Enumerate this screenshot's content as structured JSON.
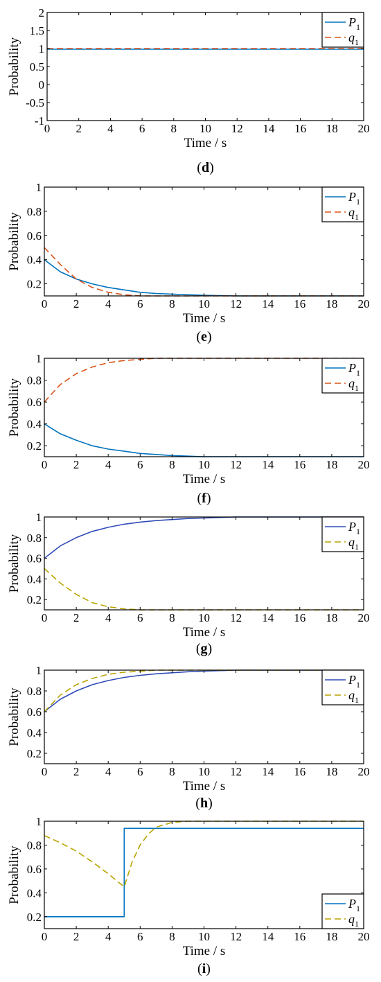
{
  "chart_data": [
    {
      "id": "d",
      "type": "line",
      "caption": "d",
      "xlabel": "Time / s",
      "ylabel": "Probability",
      "xlim": [
        0,
        20
      ],
      "ylim": [
        -1,
        2
      ],
      "xticks": [
        0,
        2,
        4,
        6,
        8,
        10,
        12,
        14,
        16,
        18,
        20
      ],
      "yticks": [
        -1,
        -0.5,
        0,
        0.5,
        1,
        1.5,
        2
      ],
      "ytick_labels": [
        "-1",
        "-0.5",
        "0",
        "0.5",
        "1",
        "1.5",
        "2"
      ],
      "grid": false,
      "legend": "top-right",
      "series": [
        {
          "name": "P",
          "subscript": "1",
          "color": "#0072BD",
          "dash": "solid",
          "x": [
            0,
            20
          ],
          "y": [
            0.98,
            0.98
          ]
        },
        {
          "name": "q",
          "subscript": "1",
          "color": "#D95319",
          "dash": "dashed",
          "x": [
            0,
            20
          ],
          "y": [
            1.0,
            1.0
          ]
        }
      ]
    },
    {
      "id": "e",
      "type": "line",
      "caption": "e",
      "xlabel": "Time / s",
      "ylabel": "Probability",
      "xlim": [
        0,
        20
      ],
      "ylim": [
        0.1,
        1
      ],
      "xticks": [
        0,
        2,
        4,
        6,
        8,
        10,
        12,
        14,
        16,
        18,
        20
      ],
      "yticks": [
        0.2,
        0.4,
        0.6,
        0.8,
        1
      ],
      "ytick_labels": [
        "0.2",
        "0.4",
        "0.6",
        "0.8",
        "1"
      ],
      "grid": false,
      "legend": "top-right",
      "series": [
        {
          "name": "P",
          "subscript": "1",
          "color": "#0072BD",
          "dash": "solid",
          "x": [
            0,
            1,
            2,
            3,
            4,
            5,
            6,
            7,
            8,
            9,
            10,
            12,
            14,
            16,
            18,
            20
          ],
          "y": [
            0.4,
            0.3,
            0.24,
            0.2,
            0.17,
            0.15,
            0.13,
            0.12,
            0.115,
            0.11,
            0.105,
            0.1,
            0.1,
            0.1,
            0.1,
            0.1
          ]
        },
        {
          "name": "q",
          "subscript": "1",
          "color": "#D95319",
          "dash": "dashed",
          "x": [
            0,
            1,
            2,
            3,
            4,
            5,
            6,
            7,
            8,
            9,
            10,
            12,
            14,
            16,
            18,
            20
          ],
          "y": [
            0.5,
            0.36,
            0.24,
            0.17,
            0.13,
            0.11,
            0.1,
            0.1,
            0.1,
            0.1,
            0.1,
            0.1,
            0.1,
            0.1,
            0.1,
            0.1
          ]
        }
      ]
    },
    {
      "id": "f",
      "type": "line",
      "caption": "f",
      "xlabel": "Time / s",
      "ylabel": "Probability",
      "xlim": [
        0,
        20
      ],
      "ylim": [
        0.1,
        1
      ],
      "xticks": [
        0,
        2,
        4,
        6,
        8,
        10,
        12,
        14,
        16,
        18,
        20
      ],
      "yticks": [
        0.2,
        0.4,
        0.6,
        0.8,
        1
      ],
      "ytick_labels": [
        "0.2",
        "0.4",
        "0.6",
        "0.8",
        "1"
      ],
      "grid": false,
      "legend": "top-right",
      "series": [
        {
          "name": "P",
          "subscript": "1",
          "color": "#0072BD",
          "dash": "solid",
          "x": [
            0,
            1,
            2,
            3,
            4,
            5,
            6,
            7,
            8,
            9,
            10,
            12,
            14,
            16,
            18,
            20
          ],
          "y": [
            0.4,
            0.31,
            0.25,
            0.2,
            0.17,
            0.15,
            0.13,
            0.12,
            0.11,
            0.105,
            0.1,
            0.1,
            0.1,
            0.1,
            0.1,
            0.1
          ]
        },
        {
          "name": "q",
          "subscript": "1",
          "color": "#D95319",
          "dash": "dashed",
          "x": [
            0,
            1,
            2,
            3,
            4,
            5,
            6,
            7,
            8,
            10,
            12,
            14,
            16,
            18,
            20
          ],
          "y": [
            0.6,
            0.76,
            0.86,
            0.92,
            0.96,
            0.98,
            0.99,
            1.0,
            1.0,
            1.0,
            1.0,
            1.0,
            1.0,
            1.0,
            1.0
          ]
        }
      ]
    },
    {
      "id": "g",
      "type": "line",
      "caption": "g",
      "xlabel": "Time / s",
      "ylabel": "Probability",
      "xlim": [
        0,
        20
      ],
      "ylim": [
        0.1,
        1
      ],
      "xticks": [
        0,
        2,
        4,
        6,
        8,
        10,
        12,
        14,
        16,
        18,
        20
      ],
      "yticks": [
        0.2,
        0.4,
        0.6,
        0.8,
        1
      ],
      "ytick_labels": [
        "0.2",
        "0.4",
        "0.6",
        "0.8",
        "1"
      ],
      "grid": false,
      "legend": "top-right",
      "series": [
        {
          "name": "P",
          "subscript": "1",
          "color": "#2F4BB8",
          "dash": "solid",
          "x": [
            0,
            1,
            2,
            3,
            4,
            5,
            6,
            7,
            8,
            9,
            10,
            12,
            14,
            16,
            18,
            20
          ],
          "y": [
            0.6,
            0.72,
            0.8,
            0.86,
            0.9,
            0.93,
            0.95,
            0.965,
            0.975,
            0.985,
            0.99,
            1.0,
            1.0,
            1.0,
            1.0,
            1.0
          ]
        },
        {
          "name": "q",
          "subscript": "1",
          "color": "#B8A400",
          "dash": "dashed",
          "x": [
            0,
            1,
            2,
            3,
            4,
            5,
            6,
            7,
            8,
            10,
            12,
            14,
            16,
            18,
            20
          ],
          "y": [
            0.5,
            0.36,
            0.25,
            0.17,
            0.13,
            0.11,
            0.1,
            0.1,
            0.1,
            0.1,
            0.1,
            0.1,
            0.1,
            0.1,
            0.1
          ]
        }
      ]
    },
    {
      "id": "h",
      "type": "line",
      "caption": "h",
      "xlabel": "Time / s",
      "ylabel": "Probability",
      "xlim": [
        0,
        20
      ],
      "ylim": [
        0.1,
        1
      ],
      "xticks": [
        0,
        2,
        4,
        6,
        8,
        10,
        12,
        14,
        16,
        18,
        20
      ],
      "yticks": [
        0.2,
        0.4,
        0.6,
        0.8,
        1
      ],
      "ytick_labels": [
        "0.2",
        "0.4",
        "0.6",
        "0.8",
        "1"
      ],
      "grid": false,
      "legend": "top-right",
      "series": [
        {
          "name": "P",
          "subscript": "1",
          "color": "#2F4BB8",
          "dash": "solid",
          "x": [
            0,
            1,
            2,
            3,
            4,
            5,
            6,
            7,
            8,
            9,
            10,
            12,
            14,
            16,
            18,
            20
          ],
          "y": [
            0.6,
            0.72,
            0.8,
            0.86,
            0.9,
            0.93,
            0.95,
            0.965,
            0.975,
            0.985,
            0.99,
            1.0,
            1.0,
            1.0,
            1.0,
            1.0
          ]
        },
        {
          "name": "q",
          "subscript": "1",
          "color": "#B8A400",
          "dash": "dashed",
          "x": [
            0,
            1,
            2,
            3,
            4,
            5,
            6,
            7,
            8,
            10,
            12,
            14,
            16,
            18,
            20
          ],
          "y": [
            0.6,
            0.76,
            0.86,
            0.92,
            0.96,
            0.98,
            0.99,
            1.0,
            1.0,
            1.0,
            1.0,
            1.0,
            1.0,
            1.0,
            1.0
          ]
        }
      ]
    },
    {
      "id": "i",
      "type": "line",
      "caption": "i",
      "xlabel": "Time / s",
      "ylabel": "Probability",
      "xlim": [
        0,
        20
      ],
      "ylim": [
        0.1,
        1
      ],
      "xticks": [
        0,
        2,
        4,
        6,
        8,
        10,
        12,
        14,
        16,
        18,
        20
      ],
      "yticks": [
        0.2,
        0.4,
        0.6,
        0.8,
        1
      ],
      "ytick_labels": [
        "0.2",
        "0.4",
        "0.6",
        "0.8",
        "1"
      ],
      "grid": false,
      "legend": "bottom-right",
      "series": [
        {
          "name": "P",
          "subscript": "1",
          "color": "#0072BD",
          "dash": "solid",
          "x": [
            0,
            5,
            5,
            20
          ],
          "y": [
            0.2,
            0.2,
            0.94,
            0.94
          ]
        },
        {
          "name": "q",
          "subscript": "1",
          "color": "#B8A400",
          "dash": "dashed",
          "x": [
            0,
            1,
            2,
            3,
            4,
            5,
            5.5,
            6,
            6.5,
            7,
            8,
            9,
            10,
            12,
            14,
            16,
            18,
            20
          ],
          "y": [
            0.88,
            0.82,
            0.75,
            0.66,
            0.56,
            0.45,
            0.66,
            0.8,
            0.89,
            0.95,
            0.99,
            1.0,
            1.0,
            1.0,
            1.0,
            1.0,
            1.0,
            1.0
          ]
        }
      ]
    }
  ]
}
